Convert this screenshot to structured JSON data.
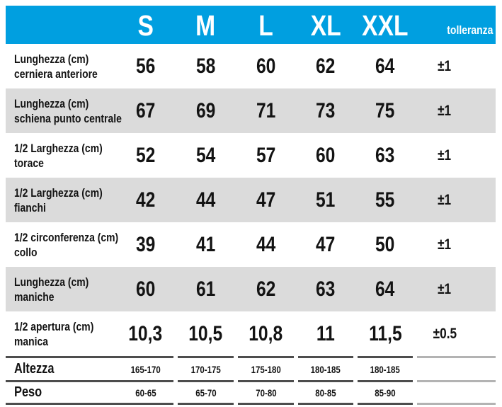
{
  "colors": {
    "header_bg": "#009FE0",
    "row_alt_bg": "#DBDBDB",
    "divider_dark": "#4D4D4D",
    "divider_light": "#B3B3B3",
    "header_text": "#FFFFFF",
    "body_text": "#131313"
  },
  "header": {
    "sizes": [
      "S",
      "M",
      "L",
      "XL",
      "XXL"
    ],
    "tolerance_label": "tolleranza"
  },
  "rows": [
    {
      "label_line1": "Lunghezza (cm)",
      "label_line2": "cerniera anteriore",
      "values": [
        "56",
        "58",
        "60",
        "62",
        "64"
      ],
      "tolerance": "±1"
    },
    {
      "label_line1": "Lunghezza (cm)",
      "label_line2": "schiena punto centrale",
      "values": [
        "67",
        "69",
        "71",
        "73",
        "75"
      ],
      "tolerance": "±1"
    },
    {
      "label_line1": "1/2 Larghezza (cm)",
      "label_line2": "torace",
      "values": [
        "52",
        "54",
        "57",
        "60",
        "63"
      ],
      "tolerance": "±1"
    },
    {
      "label_line1": "1/2 Larghezza (cm)",
      "label_line2": "fianchi",
      "values": [
        "42",
        "44",
        "47",
        "51",
        "55"
      ],
      "tolerance": "±1"
    },
    {
      "label_line1": "1/2 circonferenza (cm)",
      "label_line2": "collo",
      "values": [
        "39",
        "41",
        "44",
        "47",
        "50"
      ],
      "tolerance": "±1"
    },
    {
      "label_line1": "Lunghezza (cm)",
      "label_line2": "maniche",
      "values": [
        "60",
        "61",
        "62",
        "63",
        "64"
      ],
      "tolerance": "±1"
    },
    {
      "label_line1": "1/2 apertura (cm)",
      "label_line2": "manica",
      "values": [
        "10,3",
        "10,5",
        "10,8",
        "11",
        "11,5"
      ],
      "tolerance": "±0.5"
    }
  ],
  "footer_rows": [
    {
      "label": "Altezza",
      "values": [
        "165-170",
        "170-175",
        "175-180",
        "180-185",
        "180-185"
      ]
    },
    {
      "label": "Peso",
      "values": [
        "60-65",
        "65-70",
        "70-80",
        "80-85",
        "85-90"
      ]
    }
  ]
}
